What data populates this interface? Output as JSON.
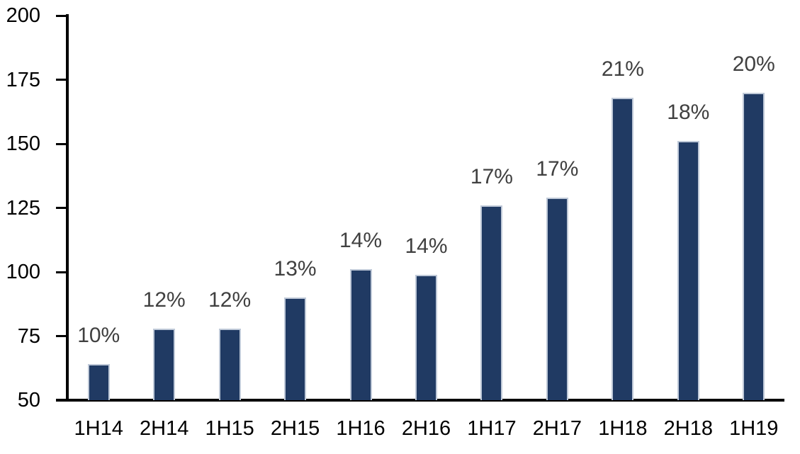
{
  "chart_data": {
    "type": "bar",
    "title": "",
    "xlabel": "",
    "ylabel": "",
    "categories": [
      "1H14",
      "2H14",
      "1H15",
      "2H15",
      "1H16",
      "2H16",
      "1H17",
      "2H17",
      "1H18",
      "2H18",
      "1H19"
    ],
    "values": [
      64,
      78,
      78,
      90,
      101,
      99,
      126,
      129,
      168,
      151,
      170
    ],
    "bar_labels": [
      "10%",
      "12%",
      "12%",
      "13%",
      "14%",
      "14%",
      "17%",
      "17%",
      "21%",
      "18%",
      "20%"
    ],
    "ylim": [
      50,
      200
    ],
    "yticks": [
      50,
      75,
      100,
      125,
      150,
      175,
      200
    ],
    "ytick_step": 25,
    "grid": false,
    "legend": "none",
    "colors": {
      "bar_fill": "#203A63",
      "bar_border": "#BFC9D8",
      "axis": "#000000",
      "axis_tick_label": "#000000",
      "data_label": "#404040",
      "background": "#FFFFFF"
    }
  }
}
